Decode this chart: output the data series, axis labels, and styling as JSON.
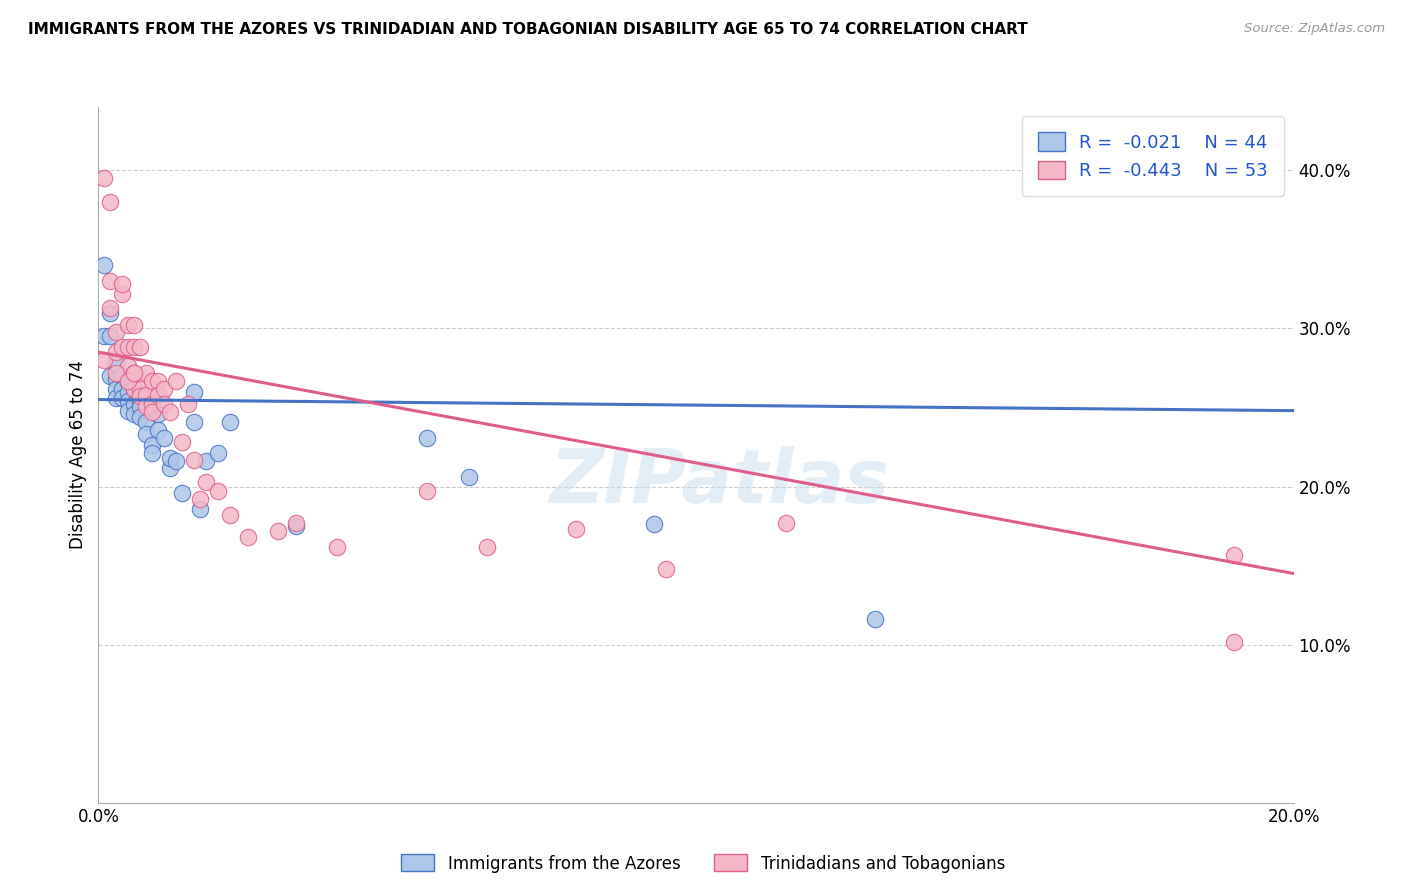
{
  "title": "IMMIGRANTS FROM THE AZORES VS TRINIDADIAN AND TOBAGONIAN DISABILITY AGE 65 TO 74 CORRELATION CHART",
  "source": "Source: ZipAtlas.com",
  "ylabel": "Disability Age 65 to 74",
  "xlim": [
    0.0,
    0.2
  ],
  "ylim": [
    0.0,
    0.44
  ],
  "yticks": [
    0.1,
    0.2,
    0.3,
    0.4
  ],
  "ytick_labels": [
    "10.0%",
    "20.0%",
    "30.0%",
    "40.0%"
  ],
  "xticks": [
    0.0,
    0.05,
    0.1,
    0.15,
    0.2
  ],
  "xtick_labels": [
    "0.0%",
    "",
    "",
    "",
    "20.0%"
  ],
  "legend_r1": "-0.021",
  "legend_n1": "44",
  "legend_r2": "-0.443",
  "legend_n2": "53",
  "color_blue": "#aec6e8",
  "color_pink": "#f4b8c8",
  "color_line_blue": "#4472c4",
  "color_line_pink": "#e05c8a",
  "watermark": "ZIPatlas",
  "blue_line_x0": 0.0,
  "blue_line_y0": 0.255,
  "blue_line_x1": 0.2,
  "blue_line_y1": 0.248,
  "pink_line_x0": 0.0,
  "pink_line_y0": 0.285,
  "pink_line_x1": 0.2,
  "pink_line_y1": 0.145,
  "blue_x": [
    0.001,
    0.001,
    0.002,
    0.002,
    0.002,
    0.003,
    0.003,
    0.003,
    0.003,
    0.004,
    0.004,
    0.004,
    0.005,
    0.005,
    0.005,
    0.005,
    0.006,
    0.006,
    0.006,
    0.007,
    0.007,
    0.007,
    0.008,
    0.008,
    0.009,
    0.009,
    0.01,
    0.01,
    0.011,
    0.012,
    0.012,
    0.013,
    0.014,
    0.016,
    0.016,
    0.017,
    0.018,
    0.02,
    0.022,
    0.033,
    0.055,
    0.062,
    0.093,
    0.13
  ],
  "blue_y": [
    0.34,
    0.295,
    0.31,
    0.295,
    0.27,
    0.278,
    0.268,
    0.262,
    0.256,
    0.27,
    0.262,
    0.256,
    0.266,
    0.26,
    0.254,
    0.248,
    0.262,
    0.252,
    0.246,
    0.254,
    0.25,
    0.244,
    0.241,
    0.233,
    0.226,
    0.221,
    0.246,
    0.236,
    0.231,
    0.212,
    0.218,
    0.216,
    0.196,
    0.26,
    0.241,
    0.186,
    0.216,
    0.221,
    0.241,
    0.175,
    0.231,
    0.206,
    0.176,
    0.116
  ],
  "pink_x": [
    0.001,
    0.001,
    0.002,
    0.002,
    0.003,
    0.003,
    0.004,
    0.004,
    0.005,
    0.005,
    0.005,
    0.006,
    0.006,
    0.006,
    0.006,
    0.007,
    0.007,
    0.007,
    0.008,
    0.008,
    0.008,
    0.009,
    0.009,
    0.009,
    0.01,
    0.01,
    0.011,
    0.011,
    0.012,
    0.013,
    0.014,
    0.015,
    0.016,
    0.017,
    0.018,
    0.02,
    0.022,
    0.025,
    0.03,
    0.033,
    0.04,
    0.055,
    0.065,
    0.08,
    0.095,
    0.115,
    0.002,
    0.003,
    0.004,
    0.005,
    0.006,
    0.19,
    0.19
  ],
  "pink_y": [
    0.395,
    0.28,
    0.38,
    0.33,
    0.285,
    0.298,
    0.322,
    0.288,
    0.302,
    0.288,
    0.276,
    0.302,
    0.288,
    0.272,
    0.262,
    0.288,
    0.262,
    0.257,
    0.272,
    0.258,
    0.251,
    0.267,
    0.252,
    0.247,
    0.267,
    0.258,
    0.262,
    0.252,
    0.247,
    0.267,
    0.228,
    0.252,
    0.217,
    0.192,
    0.203,
    0.197,
    0.182,
    0.168,
    0.172,
    0.177,
    0.162,
    0.197,
    0.162,
    0.173,
    0.148,
    0.177,
    0.313,
    0.272,
    0.328,
    0.267,
    0.272,
    0.157,
    0.102
  ]
}
